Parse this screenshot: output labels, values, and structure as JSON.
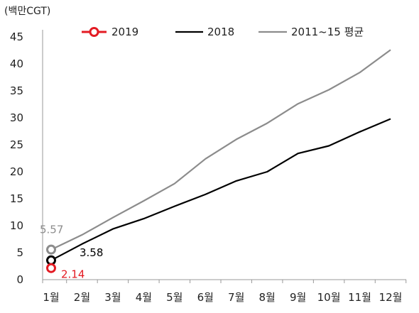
{
  "chart_data": {
    "type": "line",
    "unit_label": "(백만CGT)",
    "categories": [
      "1월",
      "2월",
      "3월",
      "4월",
      "5월",
      "6월",
      "7월",
      "8월",
      "9월",
      "10월",
      "11월",
      "12월"
    ],
    "ylim": [
      0,
      45
    ],
    "yticks": [
      0,
      5,
      10,
      15,
      20,
      25,
      30,
      35,
      40,
      45
    ],
    "grid": false,
    "legend_placement": "top",
    "series": [
      {
        "name": "2019",
        "color": "#e31b23",
        "marker": "hollow-circle",
        "values": [
          2.14,
          null,
          null,
          null,
          null,
          null,
          null,
          null,
          null,
          null,
          null,
          null
        ],
        "label": "2.14"
      },
      {
        "name": "2018",
        "color": "#000000",
        "values": [
          3.58,
          6.6,
          9.4,
          11.3,
          13.6,
          15.8,
          18.3,
          20.0,
          23.4,
          24.8,
          27.4,
          29.8
        ],
        "label": "3.58"
      },
      {
        "name": "2011~15 평균",
        "color": "#8c8c8c",
        "values": [
          5.57,
          8.3,
          11.5,
          14.6,
          17.8,
          22.4,
          26.0,
          29.0,
          32.6,
          35.2,
          38.4,
          42.6
        ],
        "label": "5.57"
      }
    ]
  }
}
